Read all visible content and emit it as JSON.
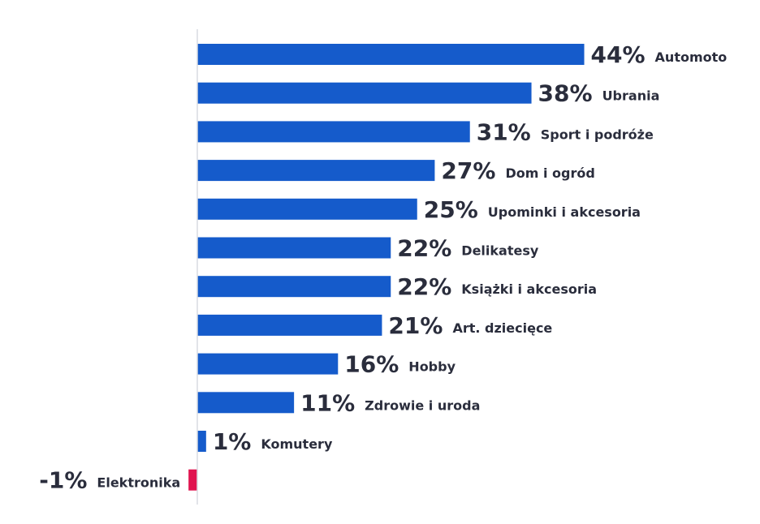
{
  "chart_data": {
    "type": "bar",
    "orientation": "horizontal",
    "categories": [
      "Automoto",
      "Ubrania",
      "Sport i podróże",
      "Dom i ogród",
      "Upominki i akcesoria",
      "Delikatesy",
      "Książki i akcesoria",
      "Art. dziecięce",
      "Hobby",
      "Zdrowie i uroda",
      "Komutery",
      "Elektronika"
    ],
    "values": [
      44,
      38,
      31,
      27,
      25,
      22,
      22,
      21,
      16,
      11,
      1,
      -1
    ],
    "labels": [
      "44%",
      "38%",
      "31%",
      "27%",
      "25%",
      "22%",
      "22%",
      "21%",
      "16%",
      "11%",
      "1%",
      "-1%"
    ],
    "colors": {
      "positive": "#155bcb",
      "negative": "#e0144f",
      "text": "#2a2d3c",
      "axis": "#d8dbe2"
    },
    "title": "",
    "xlabel": "",
    "ylabel": "",
    "grid": false,
    "legend": "none"
  }
}
